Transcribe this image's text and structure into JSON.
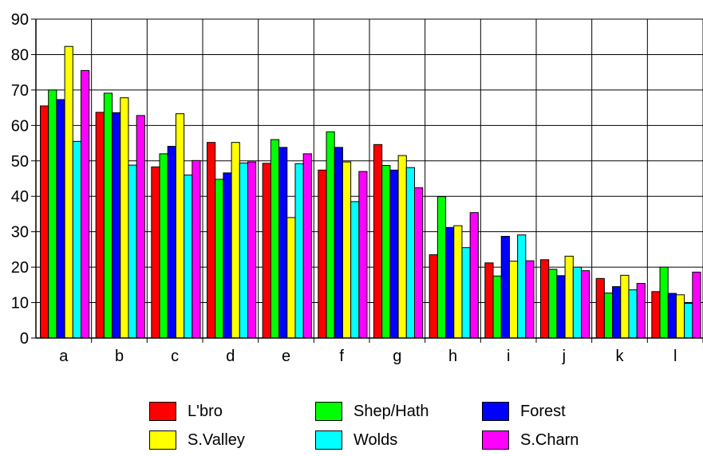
{
  "chart_data": {
    "type": "bar",
    "title": "",
    "xlabel": "",
    "ylabel": "",
    "ylim": [
      0,
      90
    ],
    "yticks": [
      0,
      10,
      20,
      30,
      40,
      50,
      60,
      70,
      80,
      90
    ],
    "grid": true,
    "legend_position": "bottom",
    "categories": [
      "a",
      "b",
      "c",
      "d",
      "e",
      "f",
      "g",
      "h",
      "i",
      "j",
      "k",
      "l"
    ],
    "series": [
      {
        "name": "L'bro",
        "color": "#ff0000",
        "values": [
          65.5,
          63.7,
          48.3,
          55.2,
          49.3,
          47.4,
          54.6,
          23.5,
          21.2,
          22.1,
          16.8,
          13.1
        ]
      },
      {
        "name": "Shep/Hath",
        "color": "#00ff00",
        "values": [
          70.0,
          69.1,
          52.0,
          44.8,
          56.0,
          58.2,
          48.7,
          39.9,
          17.5,
          19.4,
          12.7,
          20.0
        ]
      },
      {
        "name": "Forest",
        "color": "#0000ff",
        "values": [
          67.3,
          63.6,
          54.1,
          46.6,
          53.8,
          53.8,
          47.4,
          31.2,
          28.7,
          17.6,
          14.5,
          12.6
        ]
      },
      {
        "name": "S.Valley",
        "color": "#ffff00",
        "values": [
          82.3,
          67.8,
          63.3,
          55.2,
          34.0,
          49.7,
          51.5,
          31.7,
          21.7,
          23.1,
          17.7,
          12.2
        ]
      },
      {
        "name": "Wolds",
        "color": "#00ffff",
        "values": [
          55.5,
          48.8,
          46.0,
          49.4,
          49.2,
          38.5,
          48.1,
          25.5,
          29.1,
          20.0,
          13.6,
          9.8
        ]
      },
      {
        "name": "S.Charn",
        "color": "#ff00ff",
        "values": [
          75.5,
          62.8,
          50.1,
          49.7,
          52.0,
          47.0,
          42.4,
          35.4,
          21.8,
          19.0,
          15.4,
          18.6
        ]
      }
    ]
  }
}
